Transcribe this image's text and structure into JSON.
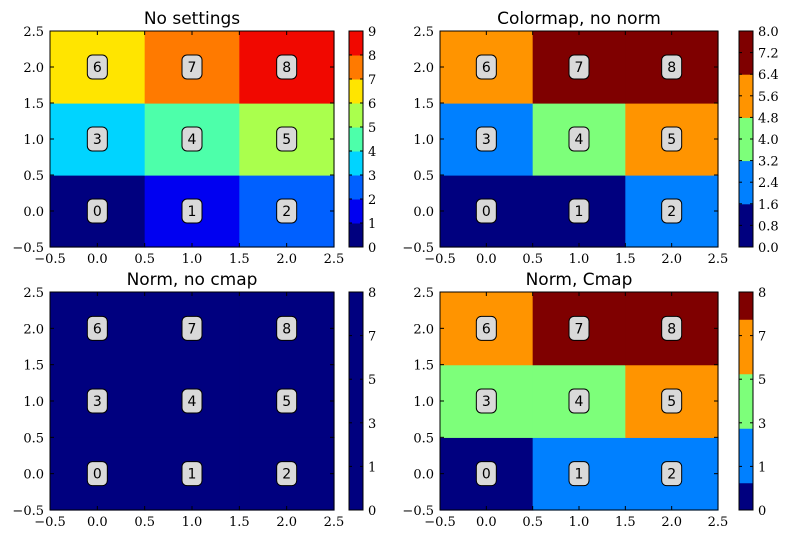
{
  "chart_data": [
    {
      "type": "heatmap",
      "title": "No settings",
      "x": [
        0,
        1,
        2
      ],
      "y": [
        0,
        1,
        2
      ],
      "values": [
        [
          0,
          1,
          2
        ],
        [
          3,
          4,
          5
        ],
        [
          6,
          7,
          8
        ]
      ],
      "xlim": [
        -0.5,
        2.5
      ],
      "ylim": [
        -0.5,
        2.5
      ],
      "x_ticks": [
        "−0.5",
        "0.0",
        "0.5",
        "1.0",
        "1.5",
        "2.0",
        "2.5"
      ],
      "y_ticks": [
        "−0.5",
        "0.0",
        "0.5",
        "1.0",
        "1.5",
        "2.0",
        "2.5"
      ],
      "colorbar": {
        "ticks": [
          "0",
          "1",
          "2",
          "3",
          "4",
          "5",
          "6",
          "7",
          "8",
          "9"
        ],
        "tick_values": [
          0,
          1,
          2,
          3,
          4,
          5,
          6,
          7,
          8,
          9
        ],
        "range": [
          0,
          9
        ],
        "bands": [
          {
            "from": 0,
            "to": 1,
            "color": "#00007f"
          },
          {
            "from": 1,
            "to": 2,
            "color": "#0000f1"
          },
          {
            "from": 2,
            "to": 3,
            "color": "#0060ff"
          },
          {
            "from": 3,
            "to": 4,
            "color": "#00d4ff"
          },
          {
            "from": 4,
            "to": 5,
            "color": "#4dffaa"
          },
          {
            "from": 5,
            "to": 6,
            "color": "#aaff4d"
          },
          {
            "from": 6,
            "to": 7,
            "color": "#ffe500"
          },
          {
            "from": 7,
            "to": 8,
            "color": "#ff7a00"
          },
          {
            "from": 8,
            "to": 9,
            "color": "#f10800"
          }
        ]
      },
      "cell_colors": [
        [
          "#00007f",
          "#0000f1",
          "#0060ff"
        ],
        [
          "#00d4ff",
          "#4dffaa",
          "#aaff4d"
        ],
        [
          "#ffe500",
          "#ff7a00",
          "#f10800"
        ]
      ]
    },
    {
      "type": "heatmap",
      "title": "Colormap, no norm",
      "x": [
        0,
        1,
        2
      ],
      "y": [
        0,
        1,
        2
      ],
      "values": [
        [
          0,
          1,
          2
        ],
        [
          3,
          4,
          5
        ],
        [
          6,
          7,
          8
        ]
      ],
      "xlim": [
        -0.5,
        2.5
      ],
      "ylim": [
        -0.5,
        2.5
      ],
      "x_ticks": [
        "−0.5",
        "0.0",
        "0.5",
        "1.0",
        "1.5",
        "2.0",
        "2.5"
      ],
      "y_ticks": [
        "−0.5",
        "0.0",
        "0.5",
        "1.0",
        "1.5",
        "2.0",
        "2.5"
      ],
      "colorbar": {
        "ticks": [
          "0.0",
          "0.8",
          "1.6",
          "2.4",
          "3.2",
          "4.0",
          "4.8",
          "5.6",
          "6.4",
          "7.2",
          "8.0"
        ],
        "tick_values": [
          0,
          0.8,
          1.6,
          2.4,
          3.2,
          4.0,
          4.8,
          5.6,
          6.4,
          7.2,
          8.0
        ],
        "range": [
          0,
          8
        ],
        "bands": [
          {
            "from": 0,
            "to": 1.6,
            "color": "#00007f"
          },
          {
            "from": 1.6,
            "to": 3.2,
            "color": "#0080ff"
          },
          {
            "from": 3.2,
            "to": 4.8,
            "color": "#7dff7a"
          },
          {
            "from": 4.8,
            "to": 6.4,
            "color": "#ff9400"
          },
          {
            "from": 6.4,
            "to": 8.0,
            "color": "#7f0000"
          }
        ]
      },
      "cell_colors": [
        [
          "#00007f",
          "#00007f",
          "#0080ff"
        ],
        [
          "#0080ff",
          "#7dff7a",
          "#ff9400"
        ],
        [
          "#ff9400",
          "#7f0000",
          "#7f0000"
        ]
      ]
    },
    {
      "type": "heatmap",
      "title": "Norm, no cmap",
      "x": [
        0,
        1,
        2
      ],
      "y": [
        0,
        1,
        2
      ],
      "values": [
        [
          0,
          1,
          2
        ],
        [
          3,
          4,
          5
        ],
        [
          6,
          7,
          8
        ]
      ],
      "xlim": [
        -0.5,
        2.5
      ],
      "ylim": [
        -0.5,
        2.5
      ],
      "x_ticks": [
        "−0.5",
        "0.0",
        "0.5",
        "1.0",
        "1.5",
        "2.0",
        "2.5"
      ],
      "y_ticks": [
        "−0.5",
        "0.0",
        "0.5",
        "1.0",
        "1.5",
        "2.0",
        "2.5"
      ],
      "colorbar": {
        "ticks": [
          "0",
          "1",
          "3",
          "5",
          "7",
          "8"
        ],
        "tick_values": [
          0,
          1,
          3,
          5,
          7,
          8
        ],
        "tick_fractions": [
          0,
          0.2,
          0.4,
          0.6,
          0.8,
          1.0
        ],
        "range": [
          0,
          8
        ],
        "bands": [
          {
            "from": 0,
            "to": 8,
            "color": "#00007f"
          }
        ]
      },
      "cell_colors": [
        [
          "#00007f",
          "#00007f",
          "#00007f"
        ],
        [
          "#00007f",
          "#00007f",
          "#00007f"
        ],
        [
          "#00007f",
          "#00007f",
          "#00007f"
        ]
      ]
    },
    {
      "type": "heatmap",
      "title": "Norm, Cmap",
      "x": [
        0,
        1,
        2
      ],
      "y": [
        0,
        1,
        2
      ],
      "values": [
        [
          0,
          1,
          2
        ],
        [
          3,
          4,
          5
        ],
        [
          6,
          7,
          8
        ]
      ],
      "xlim": [
        -0.5,
        2.5
      ],
      "ylim": [
        -0.5,
        2.5
      ],
      "x_ticks": [
        "−0.5",
        "0.0",
        "0.5",
        "1.0",
        "1.5",
        "2.0",
        "2.5"
      ],
      "y_ticks": [
        "−0.5",
        "0.0",
        "0.5",
        "1.0",
        "1.5",
        "2.0",
        "2.5"
      ],
      "colorbar": {
        "ticks": [
          "0",
          "1",
          "3",
          "5",
          "7",
          "8"
        ],
        "tick_values": [
          0,
          1,
          3,
          5,
          7,
          8
        ],
        "tick_fractions": [
          0,
          0.2,
          0.4,
          0.6,
          0.8,
          1.0
        ],
        "range": [
          0,
          8
        ],
        "bands": [
          {
            "from": 0,
            "to": 1,
            "color": "#00007f"
          },
          {
            "from": 1,
            "to": 3,
            "color": "#0080ff"
          },
          {
            "from": 3,
            "to": 5,
            "color": "#7dff7a"
          },
          {
            "from": 5,
            "to": 7,
            "color": "#ff9400"
          },
          {
            "from": 7,
            "to": 8,
            "color": "#7f0000"
          }
        ]
      },
      "cell_colors": [
        [
          "#00007f",
          "#0080ff",
          "#0080ff"
        ],
        [
          "#7dff7a",
          "#7dff7a",
          "#ff9400"
        ],
        [
          "#ff9400",
          "#7f0000",
          "#7f0000"
        ]
      ]
    }
  ]
}
